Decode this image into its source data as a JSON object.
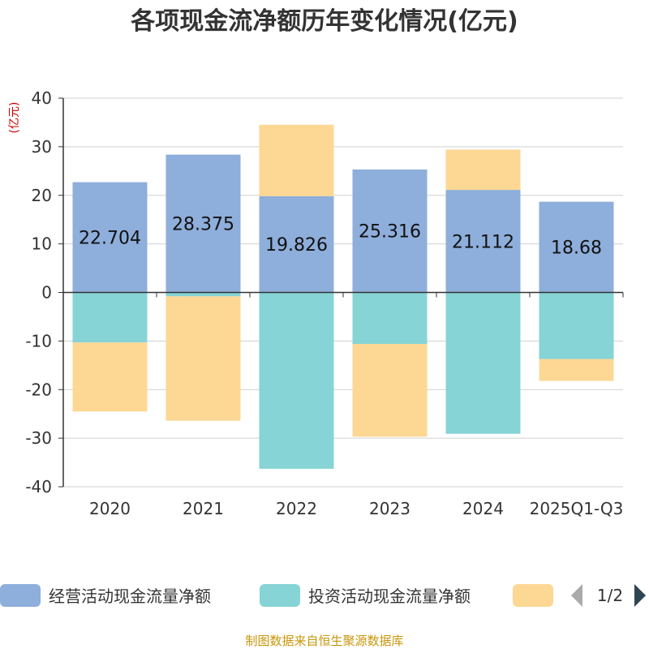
{
  "chart_data": {
    "type": "bar",
    "title": "各项现金流净额历年变化情况(亿元)",
    "unit_label": "(亿元)",
    "categories": [
      "2020",
      "2021",
      "2022",
      "2023",
      "2024",
      "2025Q1-Q3"
    ],
    "series": [
      {
        "name": "经营活动现金流量净额",
        "color": "#8eaedb",
        "values": [
          22.704,
          28.375,
          19.826,
          25.316,
          21.112,
          18.68
        ]
      },
      {
        "name": "投资活动现金流量净额",
        "color": "#86d4d6",
        "values": [
          -10.3,
          -0.8,
          -36.3,
          -10.6,
          -29.1,
          -13.7
        ]
      },
      {
        "name": "",
        "color": "#fdd794",
        "values": [
          -14.2,
          -25.6,
          14.7,
          -19.1,
          8.3,
          -4.5
        ]
      }
    ],
    "data_labels": [
      "22.704",
      "28.375",
      "19.826",
      "25.316",
      "21.112",
      "18.68"
    ],
    "stacked": true,
    "ylim": [
      -40,
      40
    ],
    "yticks": [
      40,
      30,
      20,
      10,
      0,
      -10,
      -20,
      -30,
      -40
    ],
    "grid": true,
    "legend": {
      "position": "bottom",
      "items": [
        "经营活动现金流量净额",
        "投资活动现金流量净额",
        ""
      ],
      "page": "1/2"
    }
  },
  "source_note": "制图数据来自恒生聚源数据库"
}
